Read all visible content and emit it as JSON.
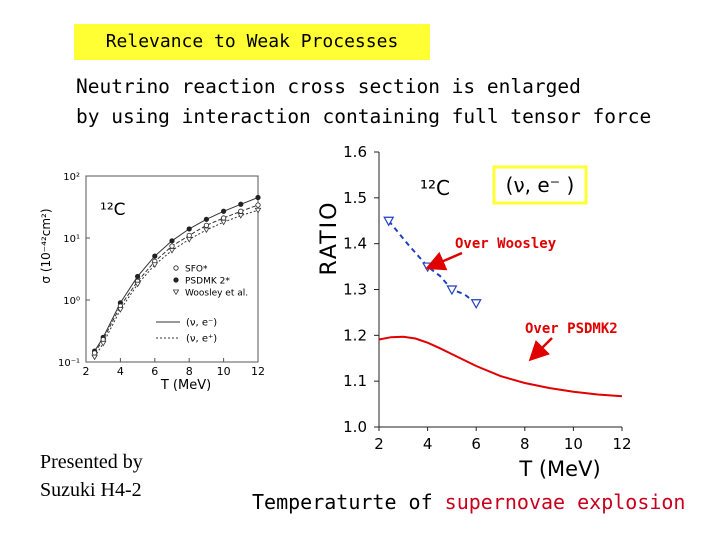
{
  "slide": {
    "title": "Relevance to Weak Processes",
    "headline_line1": "Neutrino reaction cross section is enlarged",
    "headline_line2": "by using interaction containing full tensor force",
    "presenter_line1": "Presented by",
    "presenter_line2": "Suzuki  H4-2",
    "caption_plain": "Temperaturte of ",
    "caption_highlight": "supernovae explosion",
    "highlight_color": "#c8001e",
    "title_bg_color": "#ffff33"
  },
  "chart_data": [
    {
      "type": "scatter",
      "title": "",
      "xlabel": "T (MeV)",
      "ylabel": "σ (10⁻⁴²cm²)",
      "yscale": "log",
      "xlim": [
        2,
        12
      ],
      "ylim": [
        0.1,
        100
      ],
      "x_ticks": [
        "2",
        "4",
        "6",
        "8",
        "10",
        "12"
      ],
      "y_ticks": [
        "10⁻¹",
        "10⁰",
        "10¹",
        "10²"
      ],
      "nucleus_label": "¹²C",
      "legend": {
        "position": "right",
        "markers": [
          "SFO*",
          "PSDMK 2*",
          "Woosley et al."
        ],
        "lines": [
          "(ν, e⁻)",
          "(ν, e⁺)"
        ]
      },
      "series": [
        {
          "name": "SFO*",
          "x": [
            2.5,
            3,
            4,
            5,
            6,
            7,
            8,
            9,
            10,
            11,
            12
          ],
          "y": [
            0.15,
            0.25,
            0.9,
            2.4,
            5.1,
            9.0,
            14,
            20,
            27,
            35,
            45
          ]
        },
        {
          "name": "PSDMK 2*",
          "x": [
            2.5,
            3,
            4,
            5,
            6,
            7,
            8,
            9,
            10,
            11,
            12
          ],
          "y": [
            0.14,
            0.23,
            0.8,
            2.0,
            4.2,
            7.4,
            11,
            16,
            21,
            27,
            34
          ]
        },
        {
          "name": "Woosley et al.",
          "x": [
            2.5,
            3,
            4,
            5,
            6,
            7,
            8,
            9,
            10,
            11,
            12
          ],
          "y": [
            0.12,
            0.2,
            0.7,
            1.8,
            3.7,
            6.3,
            9.5,
            13.5,
            18,
            23,
            28
          ]
        }
      ]
    },
    {
      "type": "line",
      "title": "",
      "xlabel": "T (MeV)",
      "ylabel": "RATIO",
      "xlim": [
        2,
        12
      ],
      "ylim": [
        1.0,
        1.6
      ],
      "x_ticks": [
        "2",
        "4",
        "6",
        "8",
        "10",
        "12"
      ],
      "y_ticks": [
        "1.0",
        "1.1",
        "1.2",
        "1.3",
        "1.4",
        "1.5",
        "1.6"
      ],
      "nucleus_label": "¹²C",
      "reaction_label": "(ν, e⁻ )",
      "reaction_box_color": "#ffff33",
      "series": [
        {
          "name": "Over PSDMK2",
          "color": "#e00000",
          "style": "line",
          "x": [
            2,
            2.5,
            3,
            3.5,
            4,
            4.5,
            5,
            6,
            7,
            8,
            9,
            10,
            11,
            12
          ],
          "y": [
            1.191,
            1.196,
            1.197,
            1.193,
            1.184,
            1.172,
            1.159,
            1.133,
            1.111,
            1.096,
            1.085,
            1.077,
            1.071,
            1.067
          ]
        },
        {
          "name": "Over Woosley",
          "color": "#1f3fbf",
          "style": "dashed-triangles",
          "x": [
            2.4,
            3.2,
            4.0,
            4.5,
            5.0,
            5.5,
            6.0
          ],
          "y": [
            1.45,
            1.398,
            1.35,
            1.33,
            1.3,
            1.29,
            1.27
          ]
        }
      ],
      "annotations": [
        {
          "text": "Over Woosley",
          "color": "#e00000"
        },
        {
          "text": "Over PSDMK2",
          "color": "#e00000"
        }
      ]
    }
  ]
}
